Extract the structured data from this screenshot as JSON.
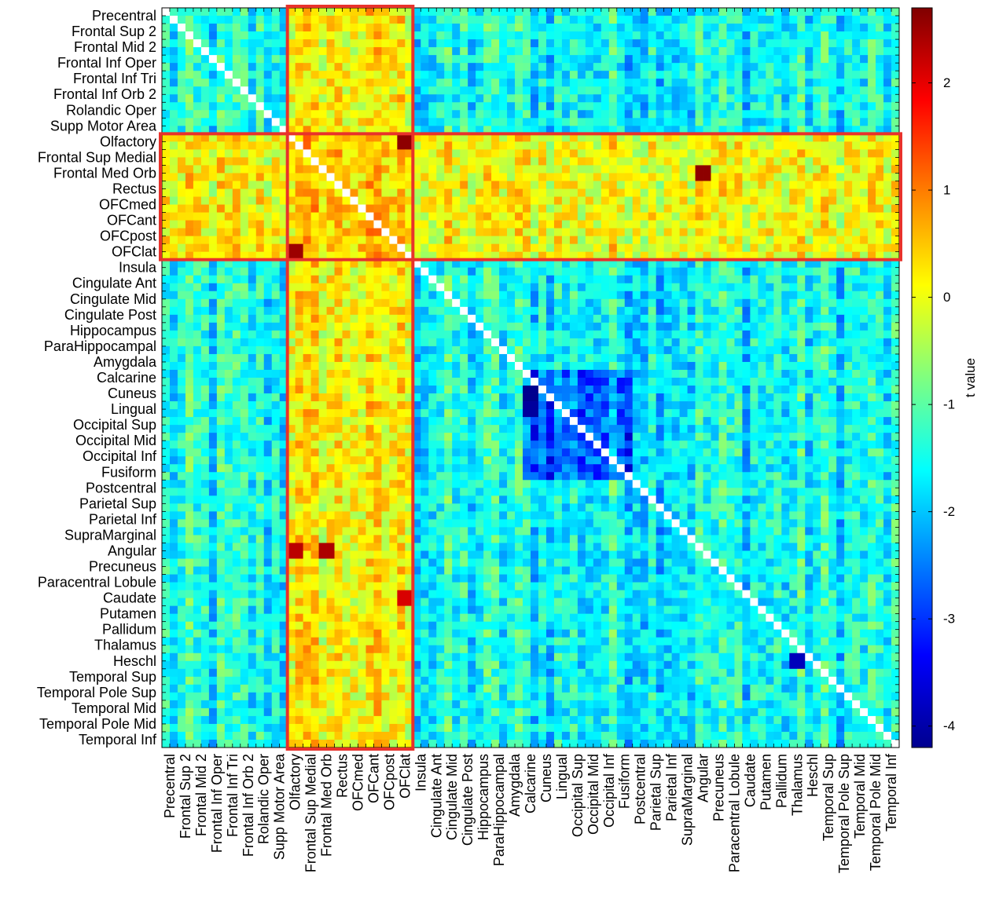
{
  "chart_data": {
    "type": "heatmap",
    "title": "",
    "xlabel": "",
    "ylabel": "",
    "row_labels": [
      "Precentral",
      "Frontal Sup 2",
      "Frontal Mid 2",
      "Frontal Inf Oper",
      "Frontal Inf Tri",
      "Frontal Inf Orb 2",
      "Rolandic Oper",
      "Supp Motor Area",
      "Olfactory",
      "Frontal Sup Medial",
      "Frontal Med Orb",
      "Rectus",
      "OFCmed",
      "OFCant",
      "OFCpost",
      "OFClat",
      "Insula",
      "Cingulate Ant",
      "Cingulate Mid",
      "Cingulate Post",
      "Hippocampus",
      "ParaHippocampal",
      "Amygdala",
      "Calcarine",
      "Cuneus",
      "Lingual",
      "Occipital Sup",
      "Occipital Mid",
      "Occipital Inf",
      "Fusiform",
      "Postcentral",
      "Parietal Sup",
      "Parietal Inf",
      "SupraMarginal",
      "Angular",
      "Precuneus",
      "Paracentral Lobule",
      "Caudate",
      "Putamen",
      "Pallidum",
      "Thalamus",
      "Heschl",
      "Temporal Sup",
      "Temporal Pole Sup",
      "Temporal Mid",
      "Temporal Pole Mid",
      "Temporal Inf"
    ],
    "column_labels": [
      "Precentral",
      "Frontal Sup 2",
      "Frontal Mid 2",
      "Frontal Inf Oper",
      "Frontal Inf Tri",
      "Frontal Inf Orb 2",
      "Rolandic Oper",
      "Supp Motor Area",
      "Olfactory",
      "Frontal Sup Medial",
      "Frontal Med Orb",
      "Rectus",
      "OFCmed",
      "OFCant",
      "OFCpost",
      "OFClat",
      "Insula",
      "Cingulate Ant",
      "Cingulate Mid",
      "Cingulate Post",
      "Hippocampus",
      "ParaHippocampal",
      "Amygdala",
      "Calcarine",
      "Cuneus",
      "Lingual",
      "Occipital Sup",
      "Occipital Mid",
      "Occipital Inf",
      "Fusiform",
      "Postcentral",
      "Parietal Sup",
      "Parietal Inf",
      "SupraMarginal",
      "Angular",
      "Precuneus",
      "Paracentral Lobule",
      "Caudate",
      "Putamen",
      "Pallidum",
      "Thalamus",
      "Heschl",
      "Temporal Sup",
      "Temporal Pole Sup",
      "Temporal Mid",
      "Temporal Pole Mid",
      "Temporal Inf"
    ],
    "n_cells_per_axis": 94,
    "cells_per_label": 2,
    "diagonal": "blank (white)",
    "colorbar": {
      "label": "t value",
      "range": [
        -4.2,
        2.7
      ],
      "ticks": [
        2,
        1,
        0,
        -1,
        -2,
        -3,
        -4
      ],
      "colormap": "jet",
      "position": "right"
    },
    "highlight_regions": [
      {
        "axis": "columns",
        "from": "Olfactory",
        "to": "OFClat",
        "color": "#e8322b"
      },
      {
        "axis": "rows",
        "from": "Olfactory",
        "to": "OFClat",
        "color": "#e8322b"
      }
    ],
    "region_mean_t": {
      "ofc_band_rows": 0.05,
      "ofc_band_cols": 0.15,
      "background": -1.55,
      "occipital_block": -2.6
    },
    "notable_values": [
      {
        "row": "Angular",
        "col": "Olfactory",
        "t": 2.3
      },
      {
        "row": "Angular",
        "col": "Frontal Med Orb",
        "t": 2.4
      },
      {
        "row": "OFClat",
        "col": "Olfactory",
        "t": 2.5
      },
      {
        "row": "Olfactory",
        "col": "OFClat",
        "t": 2.6
      },
      {
        "row": "Caudate",
        "col": "OFClat",
        "t": 2.1
      },
      {
        "row": "Frontal Med Orb",
        "col": "Angular",
        "t": 2.6
      },
      {
        "row": "Cuneus",
        "col": "Calcarine",
        "t": -4.1
      },
      {
        "row": "Lingual",
        "col": "Calcarine",
        "t": -4.0
      },
      {
        "row": "Heschl",
        "col": "Thalamus",
        "t": -3.8
      }
    ]
  }
}
